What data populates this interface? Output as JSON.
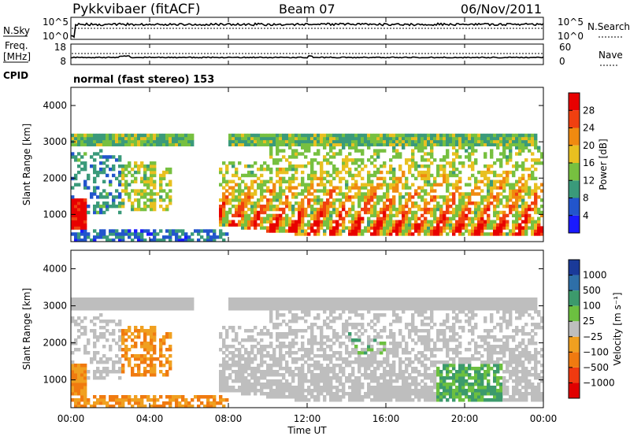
{
  "header": {
    "title": "Pykkvibaer (fitACF)",
    "beam": "Beam 07",
    "date": "06/Nov/2011",
    "cpid": "normal (fast stereo) 153"
  },
  "panel_labels": {
    "nsky": "N.Sky",
    "nsky_top": "10^5",
    "nsky_bottom": "10^0",
    "nsearch": "N.Search",
    "nsearch_top": "10^5",
    "nsearch_bottom": "10^0",
    "freq_line1": "Freq.",
    "freq_line2": "[MHz]",
    "freq_top": "18",
    "freq_bottom": "8",
    "nave": "Nave",
    "nave_top": "60",
    "nave_bottom": "0",
    "cpid_label": "CPID"
  },
  "chart_data": [
    {
      "type": "heatmap",
      "name": "power",
      "ylabel": "Slant Range [km]",
      "ylim": [
        250,
        4500
      ],
      "yticks": [
        "1000",
        "2000",
        "3000",
        "4000"
      ],
      "colorbar_label": "Power [dB]",
      "colorbar_ticks": [
        "4",
        "8",
        "12",
        "16",
        "20",
        "24",
        "28"
      ],
      "colors": [
        "#1a1aff",
        "#2255cc",
        "#3a9a7a",
        "#77c040",
        "#e8c020",
        "#f08a10",
        "#f04010",
        "#e80000"
      ],
      "clim": [
        0,
        32
      ]
    },
    {
      "type": "heatmap",
      "name": "velocity",
      "ylabel": "Slant Range [km]",
      "xlabel": "Time UT",
      "ylim": [
        250,
        4500
      ],
      "yticks": [
        "1000",
        "2000",
        "3000",
        "4000"
      ],
      "xticks": [
        "00:00",
        "04:00",
        "08:00",
        "12:00",
        "16:00",
        "20:00",
        "00:00"
      ],
      "xlim_hours": [
        0,
        24
      ],
      "colorbar_label": "Velocity [m s⁻¹]",
      "colorbar_ticks": [
        "1000",
        "500",
        "100",
        "25",
        "−25",
        "−100",
        "−500",
        "−1000"
      ],
      "colors": [
        "#1a3a99",
        "#2e6fa8",
        "#3c9a6c",
        "#6cc040",
        "#bebebe",
        "#f0a020",
        "#f07a10",
        "#f03a10",
        "#e00000"
      ]
    }
  ]
}
